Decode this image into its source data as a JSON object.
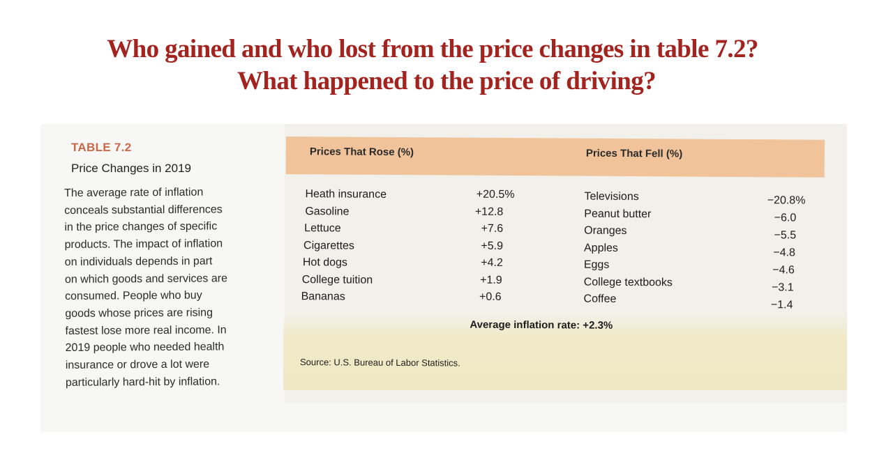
{
  "slide": {
    "title_line1": "Who gained and who lost from the price changes in table 7.2?",
    "title_line2": "What happened to the price of driving?"
  },
  "caption": {
    "label": "TABLE 7.2",
    "title": "Price Changes in 2019",
    "body_lines": [
      "The average rate of inflation",
      "conceals substantial differences",
      "in the price changes of specific",
      "products. The impact of inflation",
      "on individuals depends in part",
      "on which goods and services are",
      "consumed. People who buy",
      "goods whose prices are rising",
      "fastest lose more real income. In",
      "2019 people who needed health",
      "insurance or drove a lot were",
      "particularly hard-hit by inflation."
    ]
  },
  "table": {
    "header_rose": "Prices That Rose (%)",
    "header_fell": "Prices That Fell (%)",
    "rose": [
      {
        "item": "Heath insurance",
        "value": "+20.5%"
      },
      {
        "item": "Gasoline",
        "value": "+12.8"
      },
      {
        "item": "Lettuce",
        "value": "+7.6"
      },
      {
        "item": "Cigarettes",
        "value": "+5.9"
      },
      {
        "item": "Hot dogs",
        "value": "+4.2"
      },
      {
        "item": "College tuition",
        "value": "+1.9"
      },
      {
        "item": "Bananas",
        "value": "+0.6"
      }
    ],
    "fell": [
      {
        "item": "Televisions",
        "value": "−20.8%"
      },
      {
        "item": "Peanut butter",
        "value": "−6.0"
      },
      {
        "item": "Oranges",
        "value": "−5.5"
      },
      {
        "item": "Apples",
        "value": "−4.8"
      },
      {
        "item": "Eggs",
        "value": "−4.6"
      },
      {
        "item": "College textbooks",
        "value": "−3.1"
      },
      {
        "item": "Coffee",
        "value": "−1.4"
      }
    ],
    "average": "Average inflation rate: +2.3%",
    "source": "Source: U.S. Bureau of Labor Statistics."
  }
}
